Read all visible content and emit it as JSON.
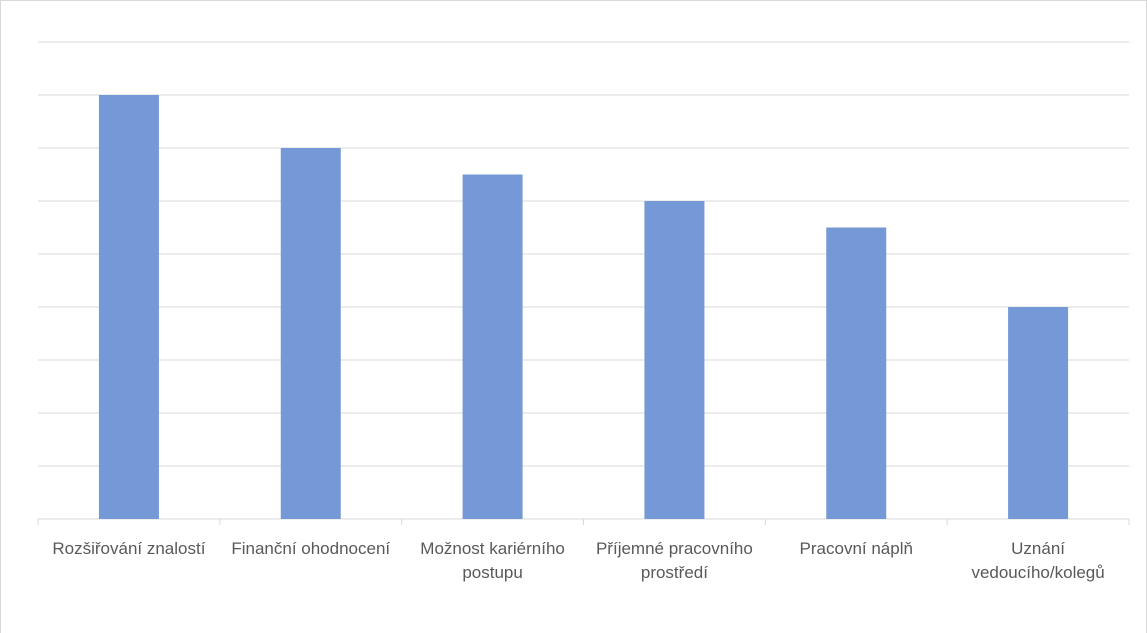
{
  "chart_data": {
    "type": "bar",
    "categories": [
      "Rozšiřování znalostí",
      "Finanční ohodnocení",
      "Možnost kariérního postupu",
      "Příjemné pracovního prostředí",
      "Pracovní náplň",
      "Uznání vedoucího/kolegů"
    ],
    "values": [
      8,
      7,
      6.5,
      6,
      5.5,
      4
    ],
    "color": "#7499d6",
    "ylim": [
      0,
      9
    ],
    "yticks": [
      0,
      1,
      2,
      3,
      4,
      5,
      6,
      7,
      8,
      9
    ],
    "grid": true
  }
}
